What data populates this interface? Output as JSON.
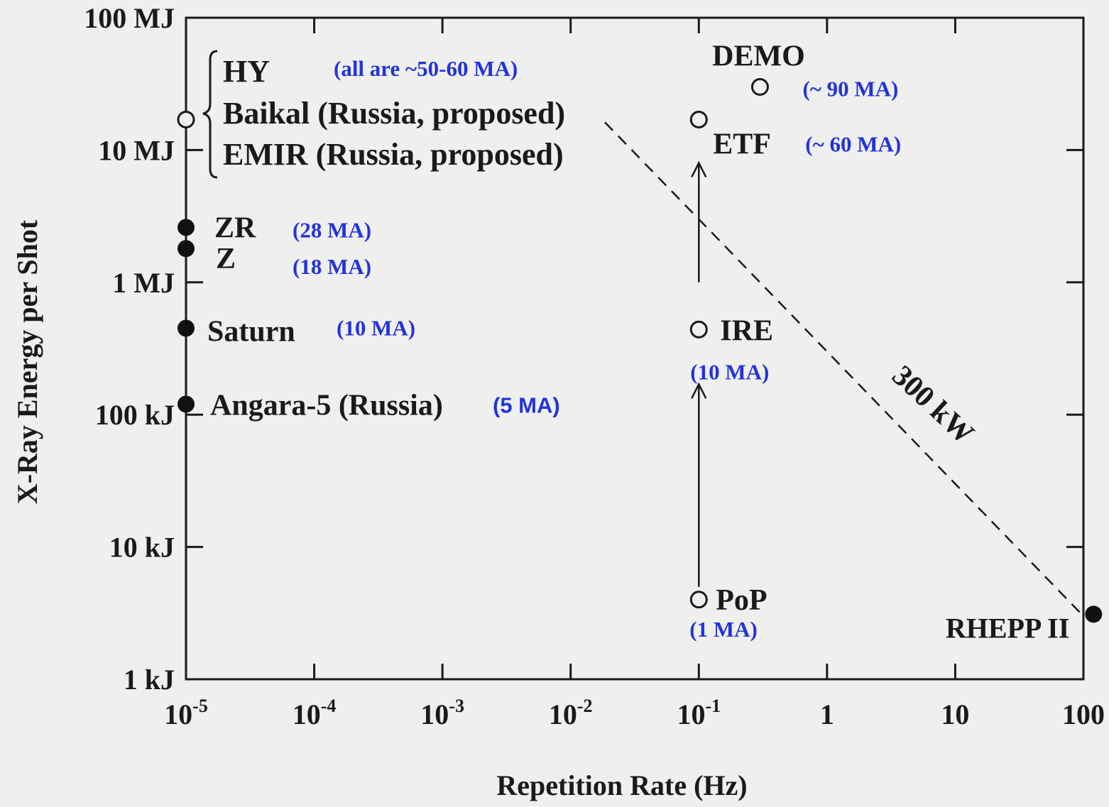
{
  "chart_data": {
    "type": "scatter",
    "xlabel": "Repetition Rate (Hz)",
    "ylabel": "X-Ray Energy per Shot",
    "x_scale": "log",
    "y_scale": "log",
    "xlim": [
      1e-05,
      100
    ],
    "ylim_J": [
      1000,
      100000000
    ],
    "x_ticks": [
      {
        "value": 1e-05,
        "base": "10",
        "exp": "-5"
      },
      {
        "value": 0.0001,
        "base": "10",
        "exp": "-4"
      },
      {
        "value": 0.001,
        "base": "10",
        "exp": "-3"
      },
      {
        "value": 0.01,
        "base": "10",
        "exp": "-2"
      },
      {
        "value": 0.1,
        "base": "10",
        "exp": "-1"
      },
      {
        "value": 1,
        "base": "1",
        "exp": ""
      },
      {
        "value": 10,
        "base": "10",
        "exp": ""
      },
      {
        "value": 100,
        "base": "100",
        "exp": ""
      }
    ],
    "y_ticks": [
      {
        "value": 1000,
        "label": "1 kJ"
      },
      {
        "value": 10000,
        "label": "10 kJ"
      },
      {
        "value": 100000,
        "label": "100 kJ"
      },
      {
        "value": 1000000,
        "label": "1 MJ"
      },
      {
        "value": 10000000,
        "label": "10 MJ"
      },
      {
        "value": 100000000,
        "label": "100 MJ"
      }
    ],
    "points": [
      {
        "name": "ZR",
        "x": 1e-05,
        "y_J": 2600000,
        "filled": true,
        "current": "(28 MA)"
      },
      {
        "name": "Z",
        "x": 1e-05,
        "y_J": 1800000,
        "filled": true,
        "current": "(18 MA)"
      },
      {
        "name": "Saturn",
        "x": 1e-05,
        "y_J": 450000,
        "filled": true,
        "current": "(10 MA)"
      },
      {
        "name": "Angara-5 (Russia)",
        "x": 1e-05,
        "y_J": 120000,
        "filled": true,
        "current": "(5 MA)"
      },
      {
        "name": "RHEPP II",
        "x": 120,
        "y_J": 3100,
        "filled": true,
        "current": ""
      },
      {
        "name": "DEMO",
        "x": 0.3,
        "y_J": 30000000,
        "filled": false,
        "current": "(~ 90 MA)"
      },
      {
        "name": "ETF",
        "x": 0.1,
        "y_J": 17000000,
        "filled": false,
        "current": "(~ 60 MA)"
      },
      {
        "name": "IRE",
        "x": 0.1,
        "y_J": 440000,
        "filled": false,
        "current": "(10 MA)"
      },
      {
        "name": "PoP",
        "x": 0.1,
        "y_J": 4000,
        "filled": false,
        "current": "(1 MA)"
      },
      {
        "name": "HY / Baikal / EMIR",
        "x": 1e-05,
        "y_J": 17000000,
        "filled": false,
        "current": "(all are ~50-60 MA)"
      }
    ],
    "group_labels": [
      "HY",
      "Baikal (Russia, proposed)",
      "EMIR (Russia, proposed)"
    ],
    "group_note": "(all are ~50-60 MA)",
    "power_line": {
      "label": "300 kW",
      "power_W": 300000,
      "style": "dashed",
      "x_from": 0.0185,
      "x_to": 100
    },
    "arrows": [
      {
        "x": 0.1,
        "from_J": 5000,
        "to_J": 170000
      },
      {
        "x": 0.1,
        "from_J": 1000000,
        "to_J": 8000000
      }
    ],
    "grid": false,
    "legend": "none"
  }
}
